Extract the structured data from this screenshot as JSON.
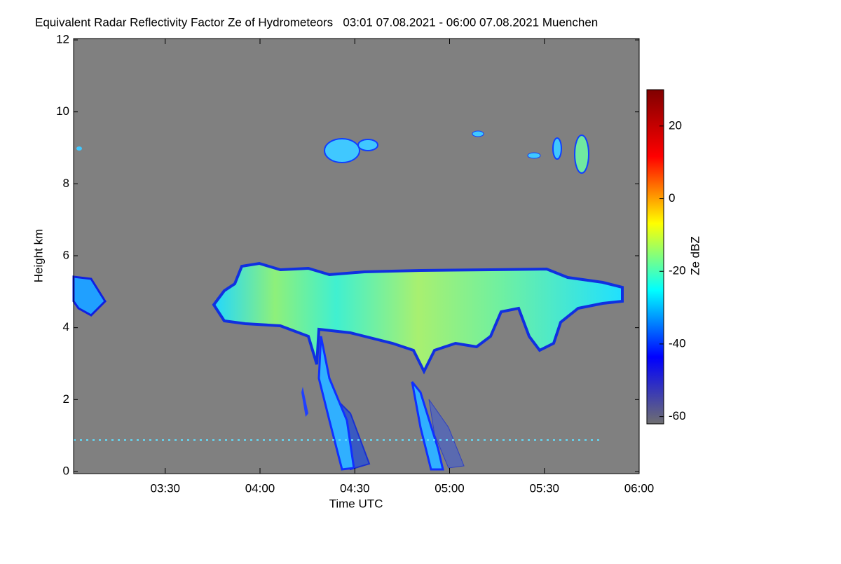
{
  "chart_data": {
    "type": "heatmap",
    "title": "Equivalent Radar Reflectivity Factor Ze of Hydrometeors   03:01 07.08.2021 - 06:00 07.08.2021 Muenchen",
    "x_label": "Time UTC",
    "y_label": "Height km",
    "colorbar_label": "Ze dBZ",
    "xlim": [
      3.0167,
      6.0
    ],
    "xticks": [
      {
        "value": 3.5,
        "label": "03:30"
      },
      {
        "value": 4.0,
        "label": "04:00"
      },
      {
        "value": 4.5,
        "label": "04:30"
      },
      {
        "value": 5.0,
        "label": "05:00"
      },
      {
        "value": 5.5,
        "label": "05:30"
      },
      {
        "value": 6.0,
        "label": "06:00"
      }
    ],
    "ylim": [
      0,
      12
    ],
    "yticks": [
      0,
      2,
      4,
      6,
      8,
      10,
      12
    ],
    "clim": [
      -62,
      30
    ],
    "cticks": [
      -60,
      -40,
      -20,
      0,
      20
    ],
    "colormap": [
      "#6f6f70",
      "#0000ff",
      "#00ffff",
      "#ffff00",
      "#ff0000",
      "#800000"
    ],
    "background": "#808080"
  }
}
